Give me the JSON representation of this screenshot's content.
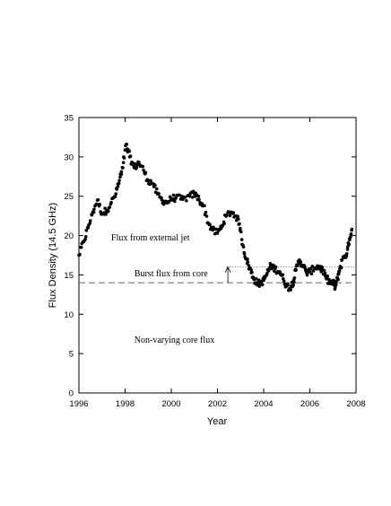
{
  "chart_data": {
    "type": "scatter",
    "xlabel": "Year",
    "ylabel": "Flux Density (14.5 GHz)",
    "xlim": [
      1996,
      2008
    ],
    "ylim": [
      0,
      35
    ],
    "xticks": [
      1996,
      1998,
      2000,
      2002,
      2004,
      2006,
      2008
    ],
    "yticks": [
      0,
      5,
      10,
      15,
      20,
      25,
      30,
      35
    ],
    "grid": false,
    "annotations": [
      {
        "text": "Flux from external jet",
        "x": 1997.4,
        "y": 19.4
      },
      {
        "text": "Burst flux from core",
        "x": 1998.4,
        "y": 14.8
      },
      {
        "text": "Non-varying core flux",
        "x": 1998.4,
        "y": 6.4
      }
    ],
    "reference_lines": [
      {
        "name": "core-baseline",
        "y": 14,
        "style": "dashed",
        "x_range": [
          1996,
          2008
        ]
      },
      {
        "name": "burst-peak",
        "y": 16,
        "style": "dotted",
        "x_range": [
          2002.4,
          2008
        ]
      }
    ],
    "arrow": {
      "x": 2002.45,
      "y_from": 14,
      "y_to": 16
    },
    "series": [
      {
        "marker": "filled-circle",
        "color": "#000000",
        "keypoints": [
          [
            1996.0,
            17.5
          ],
          [
            1996.2,
            19.2
          ],
          [
            1996.4,
            21.0
          ],
          [
            1996.6,
            23.0
          ],
          [
            1996.8,
            24.5
          ],
          [
            1997.0,
            22.8
          ],
          [
            1997.2,
            23.2
          ],
          [
            1997.4,
            24.2
          ],
          [
            1997.6,
            25.3
          ],
          [
            1997.75,
            27.0
          ],
          [
            1997.9,
            28.6
          ],
          [
            1998.05,
            31.6
          ],
          [
            1998.2,
            30.0
          ],
          [
            1998.4,
            28.6
          ],
          [
            1998.6,
            29.3
          ],
          [
            1998.8,
            28.3
          ],
          [
            1999.0,
            27.0
          ],
          [
            1999.2,
            26.6
          ],
          [
            1999.4,
            25.3
          ],
          [
            1999.6,
            24.5
          ],
          [
            1999.8,
            24.2
          ],
          [
            2000.0,
            24.7
          ],
          [
            2000.2,
            24.8
          ],
          [
            2000.5,
            24.6
          ],
          [
            2000.8,
            25.0
          ],
          [
            2001.0,
            25.3
          ],
          [
            2001.2,
            24.6
          ],
          [
            2001.4,
            23.8
          ],
          [
            2001.6,
            21.6
          ],
          [
            2001.8,
            20.7
          ],
          [
            2002.0,
            20.3
          ],
          [
            2002.2,
            21.3
          ],
          [
            2002.4,
            22.6
          ],
          [
            2002.6,
            23.0
          ],
          [
            2002.8,
            22.5
          ],
          [
            2002.95,
            21.5
          ],
          [
            2003.1,
            18.8
          ],
          [
            2003.25,
            17.0
          ],
          [
            2003.4,
            15.9
          ],
          [
            2003.55,
            14.7
          ],
          [
            2003.7,
            14.0
          ],
          [
            2003.85,
            13.9
          ],
          [
            2004.0,
            14.3
          ],
          [
            2004.15,
            15.2
          ],
          [
            2004.3,
            16.2
          ],
          [
            2004.5,
            15.8
          ],
          [
            2004.7,
            15.4
          ],
          [
            2004.85,
            14.5
          ],
          [
            2005.0,
            13.6
          ],
          [
            2005.15,
            13.3
          ],
          [
            2005.3,
            14.3
          ],
          [
            2005.4,
            15.6
          ],
          [
            2005.55,
            16.9
          ],
          [
            2005.7,
            16.2
          ],
          [
            2005.85,
            15.3
          ],
          [
            2006.0,
            15.4
          ],
          [
            2006.2,
            15.9
          ],
          [
            2006.4,
            16.1
          ],
          [
            2006.55,
            15.6
          ],
          [
            2006.7,
            14.6
          ],
          [
            2006.85,
            14.1
          ],
          [
            2007.0,
            14.0
          ],
          [
            2007.1,
            13.4
          ],
          [
            2007.2,
            14.6
          ],
          [
            2007.3,
            15.8
          ],
          [
            2007.45,
            17.3
          ],
          [
            2007.6,
            17.7
          ],
          [
            2007.72,
            19.6
          ],
          [
            2007.82,
            20.8
          ]
        ]
      }
    ]
  }
}
